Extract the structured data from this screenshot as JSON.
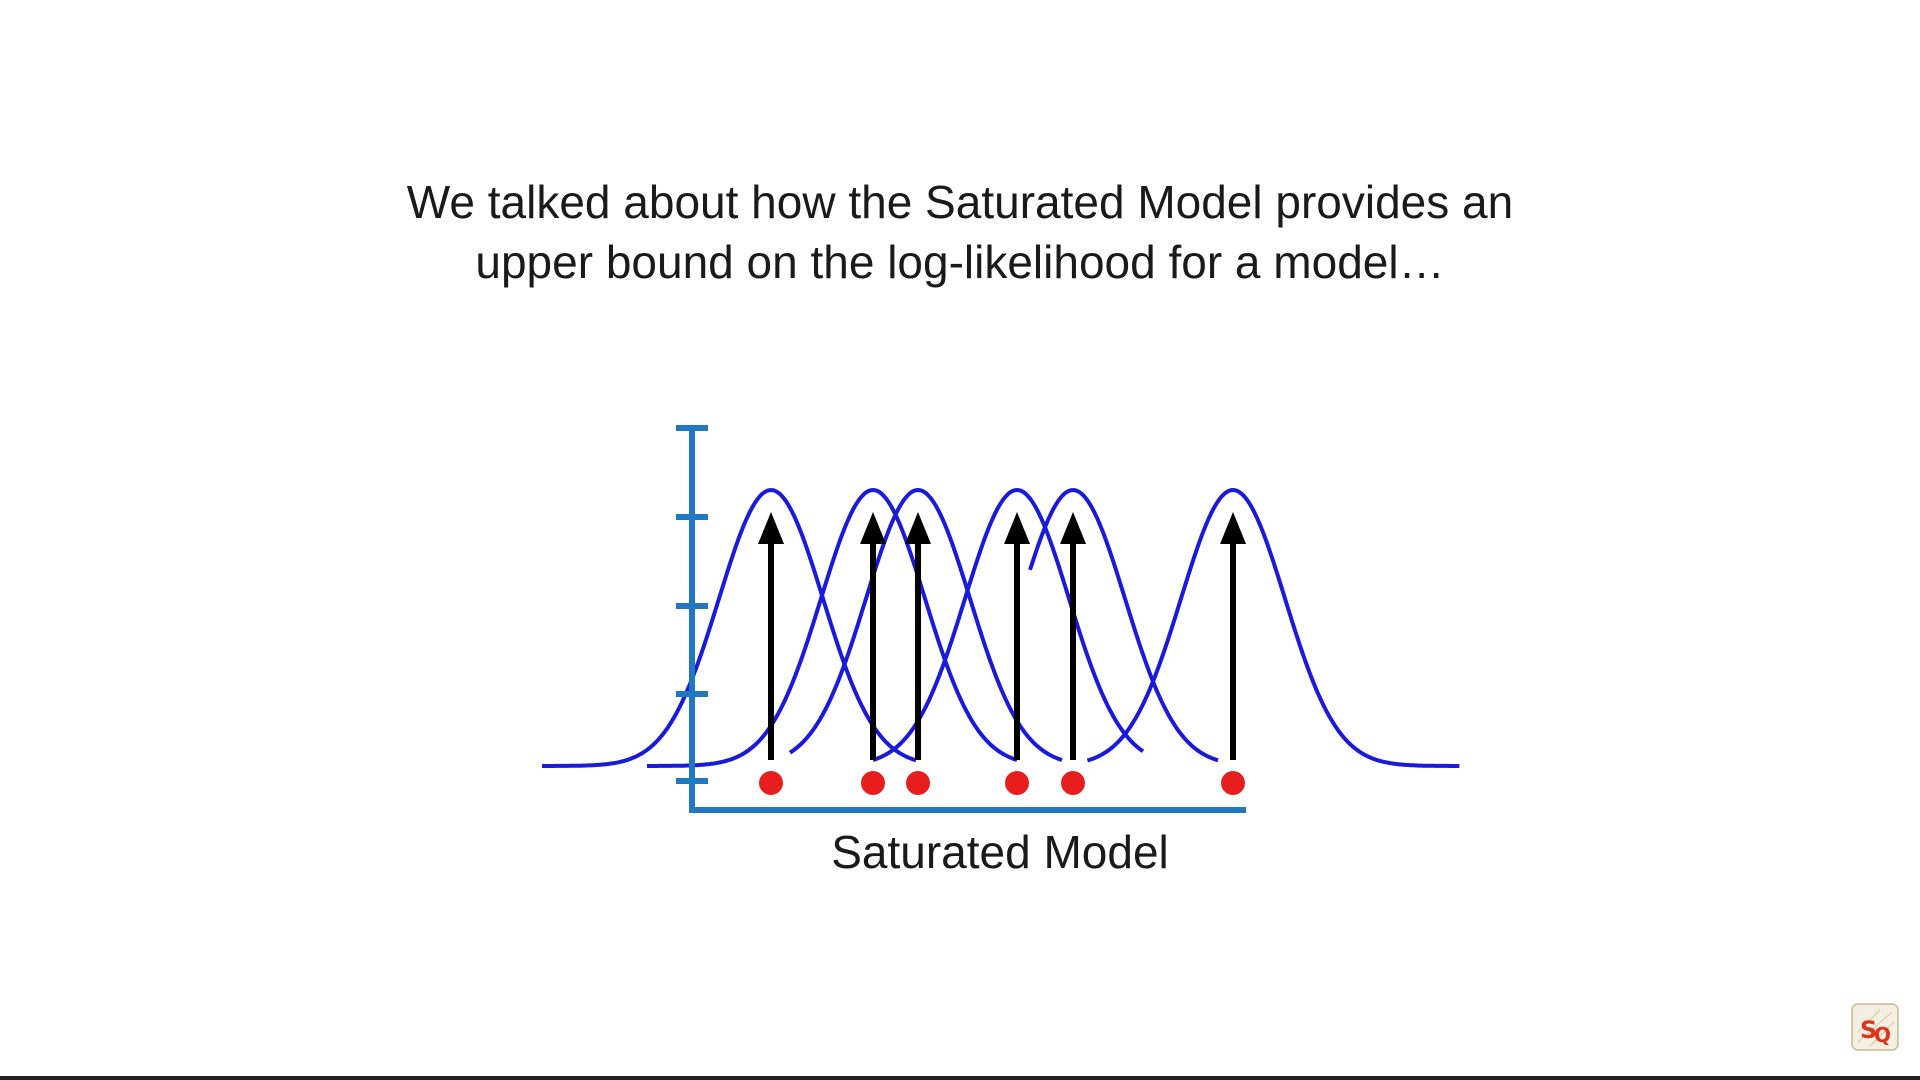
{
  "slide": {
    "caption_line1": "We talked about how the Saturated Model provides an",
    "caption_line2": "upper bound on the log-likelihood for a model…",
    "axis_label": "Saturated Model"
  },
  "diagram": {
    "axis_ticks": 5,
    "data_points": [
      1,
      2,
      3,
      4,
      5,
      6
    ],
    "colors": {
      "axis": "#1f78c1",
      "curve": "#1a1adb",
      "arrow": "#000000",
      "point": "#e61e1e"
    }
  },
  "logo": {
    "icon": "statquest-logo-icon"
  }
}
